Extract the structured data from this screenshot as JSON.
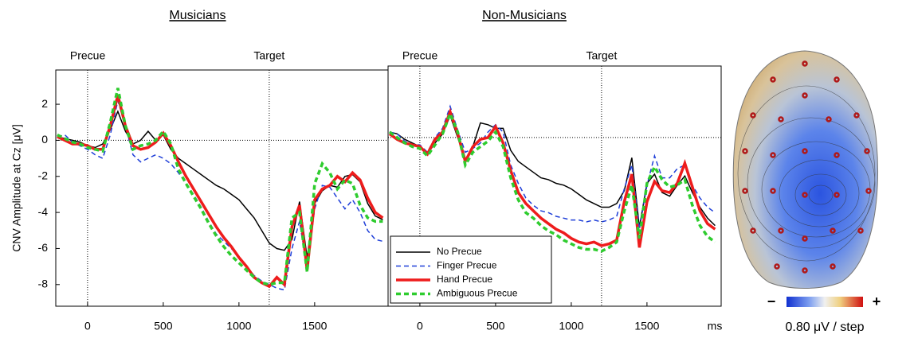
{
  "chart_data": [
    {
      "type": "line",
      "title": "Musicians",
      "ylabel": "CNV Amplitude at Cz [μV]",
      "xlim": [
        -210,
        1985
      ],
      "ylim": [
        -9.2,
        3.9
      ],
      "xticks": [
        0,
        500,
        1000,
        1500
      ],
      "yticks": [
        -8,
        -6,
        -4,
        -2,
        0,
        2
      ],
      "zero_line": true,
      "markers": [
        {
          "label": "Precue",
          "x": 0
        },
        {
          "label": "Target",
          "x": 1200
        }
      ],
      "x": [
        -200,
        -150,
        -100,
        -50,
        0,
        50,
        100,
        150,
        200,
        250,
        300,
        350,
        400,
        450,
        500,
        550,
        600,
        650,
        700,
        750,
        800,
        850,
        900,
        950,
        1000,
        1050,
        1100,
        1150,
        1200,
        1250,
        1300,
        1350,
        1400,
        1450,
        1500,
        1550,
        1600,
        1650,
        1700,
        1750,
        1800,
        1850,
        1900,
        1950
      ],
      "series": [
        {
          "name": "No Precue",
          "color": "#000000",
          "dash": false,
          "width": 1.5,
          "values": [
            0.2,
            0.1,
            0,
            -0.1,
            -0.3,
            -0.4,
            -0.2,
            0.6,
            1.6,
            0.5,
            -0.2,
            0,
            0.5,
            0,
            0.3,
            -0.5,
            -1,
            -1.3,
            -1.6,
            -1.9,
            -2.2,
            -2.5,
            -2.7,
            -3,
            -3.3,
            -3.8,
            -4.3,
            -5,
            -5.7,
            -6,
            -6.1,
            -5.5,
            -3.4,
            -6.5,
            -3.5,
            -2.8,
            -2.5,
            -2.6,
            -2,
            -1.9,
            -2.3,
            -3.5,
            -4.2,
            -4.4
          ]
        },
        {
          "name": "Finger Precue",
          "color": "#1f3fd8",
          "dash": true,
          "width": 1.5,
          "values": [
            0.2,
            0.3,
            -0.1,
            -0.3,
            -0.5,
            -0.8,
            -1,
            0.3,
            2.2,
            0.8,
            -0.8,
            -1.2,
            -1,
            -0.8,
            -1,
            -1.3,
            -1.8,
            -2.4,
            -3,
            -3.7,
            -4.5,
            -5.2,
            -5.6,
            -6,
            -6.5,
            -7,
            -7.5,
            -7.8,
            -8,
            -8.2,
            -8.3,
            -6,
            -4.5,
            -7.1,
            -3.8,
            -2.5,
            -2.6,
            -3.2,
            -3.8,
            -3.3,
            -4,
            -5,
            -5.5,
            -5.6
          ]
        },
        {
          "name": "Hand Precue",
          "color": "#ee1c1c",
          "dash": false,
          "width": 3.5,
          "values": [
            0.2,
            0,
            -0.2,
            -0.2,
            -0.3,
            -0.5,
            -0.5,
            0.8,
            2.5,
            0.8,
            -0.3,
            -0.5,
            -0.4,
            -0.1,
            0.4,
            -0.3,
            -1.2,
            -2,
            -2.7,
            -3.4,
            -4.1,
            -4.8,
            -5.4,
            -5.9,
            -6.5,
            -7,
            -7.6,
            -7.9,
            -8.1,
            -7.6,
            -8,
            -4.8,
            -3.6,
            -7.2,
            -3.3,
            -2.7,
            -2.5,
            -2,
            -2.3,
            -1.8,
            -2.2,
            -3.2,
            -4,
            -4.3
          ]
        },
        {
          "name": "Ambiguous Precue",
          "color": "#2ecc2e",
          "dash": true,
          "width": 3.5,
          "values": [
            0.3,
            0.1,
            -0.1,
            -0.2,
            -0.4,
            -0.5,
            -0.6,
            1,
            2.9,
            0.8,
            -0.5,
            -0.3,
            -0.2,
            0,
            0.5,
            -0.2,
            -1.6,
            -2.4,
            -3.1,
            -3.8,
            -4.6,
            -5.3,
            -5.9,
            -6.4,
            -6.8,
            -7.2,
            -7.6,
            -7.9,
            -8,
            -7.9,
            -7.9,
            -4.3,
            -4,
            -7.3,
            -2.4,
            -1.3,
            -1.8,
            -2.7,
            -2.2,
            -2.4,
            -3.6,
            -4.3,
            -4.5,
            -4.5
          ]
        }
      ]
    },
    {
      "type": "line",
      "title": "Non-Musicians",
      "xlabel": "ms",
      "xlim": [
        -210,
        1990
      ],
      "ylim": [
        -9.2,
        3.9
      ],
      "xticks": [
        0,
        500,
        1000,
        1500
      ],
      "zero_line": true,
      "legend": "lower left",
      "markers": [
        {
          "label": "Precue",
          "x": 0
        },
        {
          "label": "Target",
          "x": 1200
        }
      ],
      "x": [
        -200,
        -150,
        -100,
        -50,
        0,
        50,
        100,
        150,
        200,
        250,
        300,
        350,
        400,
        450,
        500,
        550,
        600,
        650,
        700,
        750,
        800,
        850,
        900,
        950,
        1000,
        1050,
        1100,
        1150,
        1200,
        1250,
        1300,
        1350,
        1400,
        1450,
        1500,
        1550,
        1600,
        1650,
        1700,
        1750,
        1800,
        1850,
        1900,
        1950
      ],
      "series": [
        {
          "name": "No Precue",
          "color": "#000000",
          "dash": false,
          "width": 1.5,
          "values": [
            0.3,
            0.2,
            -0.1,
            -0.3,
            -0.5,
            -0.9,
            -0.3,
            0.2,
            1.2,
            0,
            -1.2,
            -0.5,
            0.8,
            0.7,
            0.5,
            0.5,
            -0.7,
            -1.3,
            -1.6,
            -1.9,
            -2.2,
            -2.3,
            -2.5,
            -2.6,
            -2.8,
            -3.1,
            -3.4,
            -3.6,
            -3.8,
            -3.8,
            -3.6,
            -2.9,
            -1.1,
            -4.9,
            -2.5,
            -2,
            -3,
            -3.2,
            -2.6,
            -2.1,
            -3,
            -3.8,
            -4.4,
            -4.8
          ]
        },
        {
          "name": "Finger Precue",
          "color": "#1f3fd8",
          "dash": true,
          "width": 1.5,
          "values": [
            0.3,
            0.2,
            -0.2,
            -0.4,
            -0.4,
            -0.8,
            0,
            0.5,
            1.7,
            0.4,
            -0.8,
            -0.6,
            -0.3,
            0.3,
            0.7,
            0.3,
            -1.5,
            -2.5,
            -3.3,
            -3.7,
            -4,
            -4.1,
            -4.3,
            -4.4,
            -4.5,
            -4.5,
            -4.6,
            -4.5,
            -4.6,
            -4.5,
            -4.3,
            -2.8,
            -1.5,
            -5,
            -2.6,
            -1,
            -2.2,
            -2.2,
            -1.7,
            -1.5,
            -2.6,
            -3.3,
            -3.8,
            -4.1
          ]
        },
        {
          "name": "Hand Precue",
          "color": "#ee1c1c",
          "dash": false,
          "width": 3.5,
          "values": [
            0.2,
            -0.1,
            -0.3,
            -0.4,
            -0.5,
            -0.9,
            -0.1,
            0.3,
            1.4,
            0.2,
            -1.3,
            -0.5,
            -0.1,
            0,
            0.6,
            -0.3,
            -1.8,
            -3,
            -3.6,
            -4,
            -4.4,
            -4.7,
            -5,
            -5.2,
            -5.5,
            -5.7,
            -5.8,
            -5.7,
            -5.9,
            -5.8,
            -5.6,
            -3.5,
            -2,
            -6,
            -3.5,
            -2.4,
            -2.9,
            -3,
            -2.5,
            -1.4,
            -2.7,
            -4,
            -4.7,
            -5
          ]
        },
        {
          "name": "Ambiguous Precue",
          "color": "#2ecc2e",
          "dash": true,
          "width": 3.5,
          "values": [
            0.3,
            0,
            -0.3,
            -0.5,
            -0.6,
            -1,
            -0.4,
            0.2,
            1.3,
            0.3,
            -1.5,
            -0.8,
            -0.5,
            -0.2,
            0.3,
            -0.5,
            -2.2,
            -3.4,
            -4.1,
            -4.4,
            -4.8,
            -5.1,
            -5.3,
            -5.6,
            -5.8,
            -6,
            -6.1,
            -6.1,
            -6.2,
            -6,
            -5.7,
            -4,
            -2.6,
            -5.5,
            -2.5,
            -1.6,
            -2.3,
            -2.7,
            -2.6,
            -2.3,
            -3.7,
            -4.8,
            -5.4,
            -5.7
          ]
        }
      ]
    }
  ],
  "topomap": {
    "minus": "−",
    "plus": "+",
    "scale_label": "0.80 μV / step"
  }
}
